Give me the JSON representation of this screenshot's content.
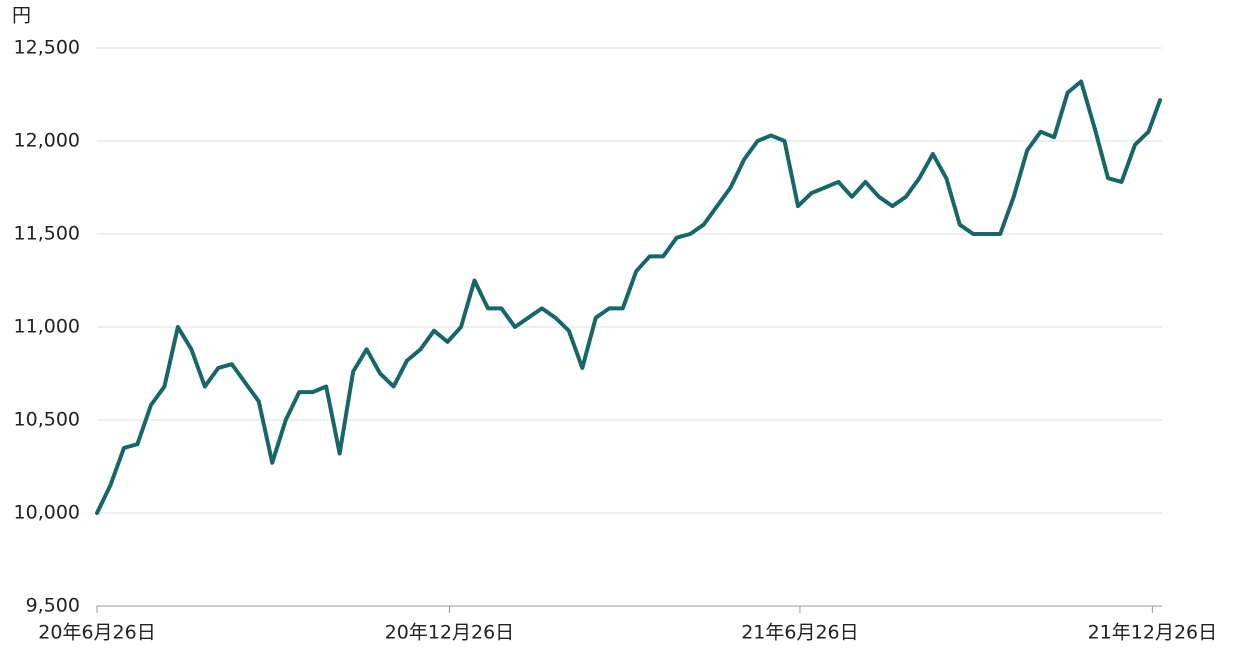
{
  "chart_data": {
    "type": "line",
    "y_unit_label": "円",
    "x": [
      "2020-06-26",
      "2020-07-03",
      "2020-07-10",
      "2020-07-17",
      "2020-07-24",
      "2020-07-31",
      "2020-08-07",
      "2020-08-14",
      "2020-08-21",
      "2020-08-28",
      "2020-09-04",
      "2020-09-11",
      "2020-09-18",
      "2020-09-25",
      "2020-10-02",
      "2020-10-09",
      "2020-10-16",
      "2020-10-23",
      "2020-10-30",
      "2020-11-06",
      "2020-11-13",
      "2020-11-20",
      "2020-11-27",
      "2020-12-04",
      "2020-12-11",
      "2020-12-18",
      "2020-12-25",
      "2021-01-01",
      "2021-01-08",
      "2021-01-15",
      "2021-01-22",
      "2021-01-29",
      "2021-02-05",
      "2021-02-12",
      "2021-02-19",
      "2021-02-26",
      "2021-03-05",
      "2021-03-12",
      "2021-03-19",
      "2021-03-26",
      "2021-04-02",
      "2021-04-09",
      "2021-04-16",
      "2021-04-23",
      "2021-04-30",
      "2021-05-07",
      "2021-05-14",
      "2021-05-21",
      "2021-05-28",
      "2021-06-04",
      "2021-06-11",
      "2021-06-18",
      "2021-06-25",
      "2021-07-02",
      "2021-07-09",
      "2021-07-16",
      "2021-07-23",
      "2021-07-30",
      "2021-08-06",
      "2021-08-13",
      "2021-08-20",
      "2021-08-27",
      "2021-09-03",
      "2021-09-10",
      "2021-09-17",
      "2021-09-24",
      "2021-10-01",
      "2021-10-08",
      "2021-10-15",
      "2021-10-22",
      "2021-10-29",
      "2021-11-05",
      "2021-11-12",
      "2021-11-19",
      "2021-11-26",
      "2021-12-03",
      "2021-12-10",
      "2021-12-17",
      "2021-12-24",
      "2021-12-30"
    ],
    "series": [
      {
        "color": "#17676a",
        "values": [
          10000,
          10150,
          10350,
          10370,
          10580,
          10680,
          11000,
          10880,
          10680,
          10780,
          10800,
          10700,
          10600,
          10270,
          10500,
          10650,
          10650,
          10680,
          10320,
          10760,
          10880,
          10750,
          10680,
          10820,
          10880,
          10980,
          10920,
          11000,
          11250,
          11100,
          11100,
          11000,
          11050,
          11100,
          11050,
          10980,
          10780,
          11050,
          11100,
          11100,
          11300,
          11380,
          11380,
          11480,
          11500,
          11550,
          11650,
          11750,
          11900,
          12000,
          12030,
          12000,
          11650,
          11720,
          11750,
          11780,
          11700,
          11780,
          11700,
          11650,
          11700,
          11800,
          11930,
          11800,
          11550,
          11500,
          11500,
          11500,
          11700,
          11950,
          12050,
          12020,
          12260,
          12320,
          12070,
          11800,
          11780,
          11980,
          12050,
          12220
        ]
      }
    ],
    "xlim": [
      "2020-06-26",
      "2021-12-31"
    ],
    "xticks": [
      {
        "value": "2020-06-26",
        "label": "20年6月26日"
      },
      {
        "value": "2020-12-26",
        "label": "20年12月26日"
      },
      {
        "value": "2021-06-26",
        "label": "21年6月26日"
      },
      {
        "value": "2021-12-26",
        "label": "21年12月26日"
      }
    ],
    "ylim": [
      9500,
      12500
    ],
    "yticks": [
      {
        "value": 9500,
        "label": "9,500"
      },
      {
        "value": 10000,
        "label": "10,000"
      },
      {
        "value": 10500,
        "label": "10,500"
      },
      {
        "value": 11000,
        "label": "11,000"
      },
      {
        "value": 11500,
        "label": "11,500"
      },
      {
        "value": 12000,
        "label": "12,000"
      },
      {
        "value": 12500,
        "label": "12,500"
      }
    ],
    "grid": true
  }
}
